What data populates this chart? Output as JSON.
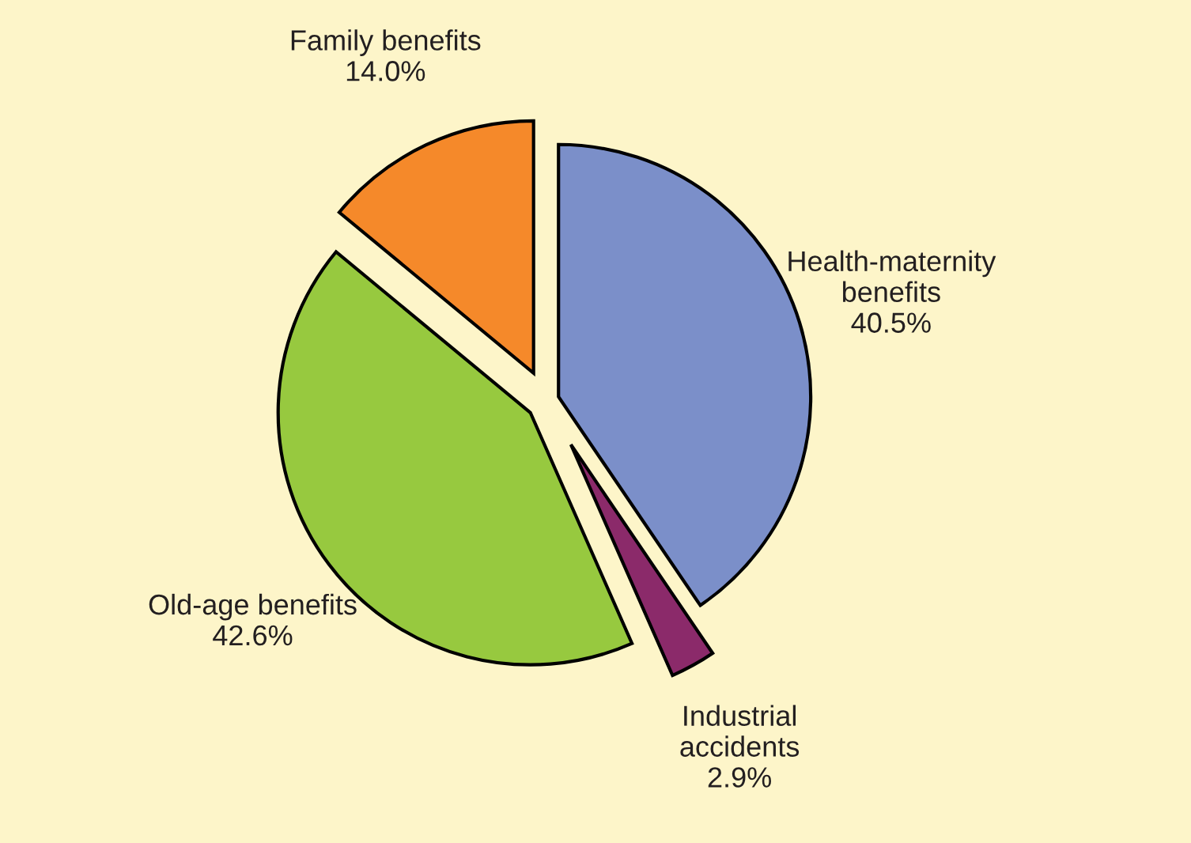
{
  "chart_data": {
    "type": "pie",
    "categories": [
      "Health-maternity benefits",
      "Industrial accidents",
      "Old-age benefits",
      "Family benefits"
    ],
    "values": [
      40.5,
      2.9,
      42.6,
      14.0
    ],
    "value_labels": [
      "40.5%",
      "2.9%",
      "42.6%",
      "14.0%"
    ],
    "colors": [
      "#7b8fc9",
      "#8b2a6a",
      "#97c93f",
      "#f5892a"
    ]
  }
}
